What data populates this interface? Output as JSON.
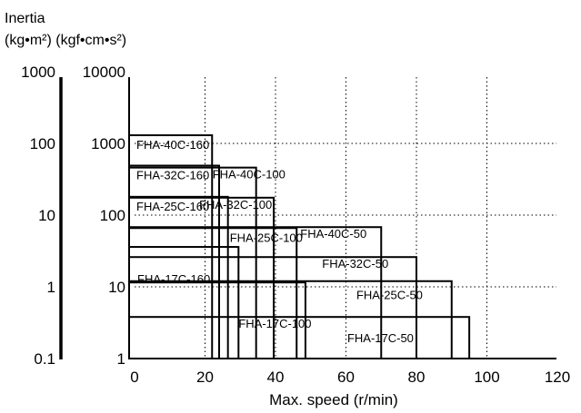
{
  "chart_data": {
    "type": "bar",
    "title_line1": "Inertia",
    "title_line2": "(kg•m²) (kgf•cm•s²)",
    "xlabel": "Max. speed (r/min)",
    "x_ticks": [
      "0",
      "20",
      "40",
      "60",
      "80",
      "100",
      "120"
    ],
    "xlim": [
      0,
      120
    ],
    "y_scale": "log",
    "ylim": [
      1,
      10000
    ],
    "y_ticks_inner": [
      "1",
      "10",
      "100",
      "1000",
      "10000"
    ],
    "y_ticks_outer": [
      "0.1",
      "1",
      "10",
      "100",
      "1000"
    ],
    "grid": "dotted, x at 20/40/60/80/100, y at 10/100/1000",
    "boxes": [
      {
        "label": "FHA-40C-160",
        "max_speed": 22,
        "inertia_max": 1300
      },
      {
        "label": "FHA-40C-100",
        "max_speed": 34.5,
        "inertia_max": 460
      },
      {
        "label": "FHA-40C-50",
        "max_speed": 70,
        "inertia_max": 68
      },
      {
        "label": "FHA-32C-160",
        "max_speed": 24,
        "inertia_max": 490
      },
      {
        "label": "FHA-32C-100",
        "max_speed": 39.5,
        "inertia_max": 175
      },
      {
        "label": "FHA-32C-50",
        "max_speed": 80,
        "inertia_max": 26
      },
      {
        "label": "FHA-25C-160",
        "max_speed": 26.5,
        "inertia_max": 180
      },
      {
        "label": "FHA-25C-100",
        "max_speed": 46,
        "inertia_max": 66
      },
      {
        "label": "FHA-25C-50",
        "max_speed": 90,
        "inertia_max": 12
      },
      {
        "label": "FHA-17C-160",
        "max_speed": 29.5,
        "inertia_max": 36
      },
      {
        "label": "FHA-17C-100",
        "max_speed": 48.5,
        "inertia_max": 11.5
      },
      {
        "label": "FHA-17C-50",
        "max_speed": 95,
        "inertia_max": 3.8
      }
    ]
  }
}
